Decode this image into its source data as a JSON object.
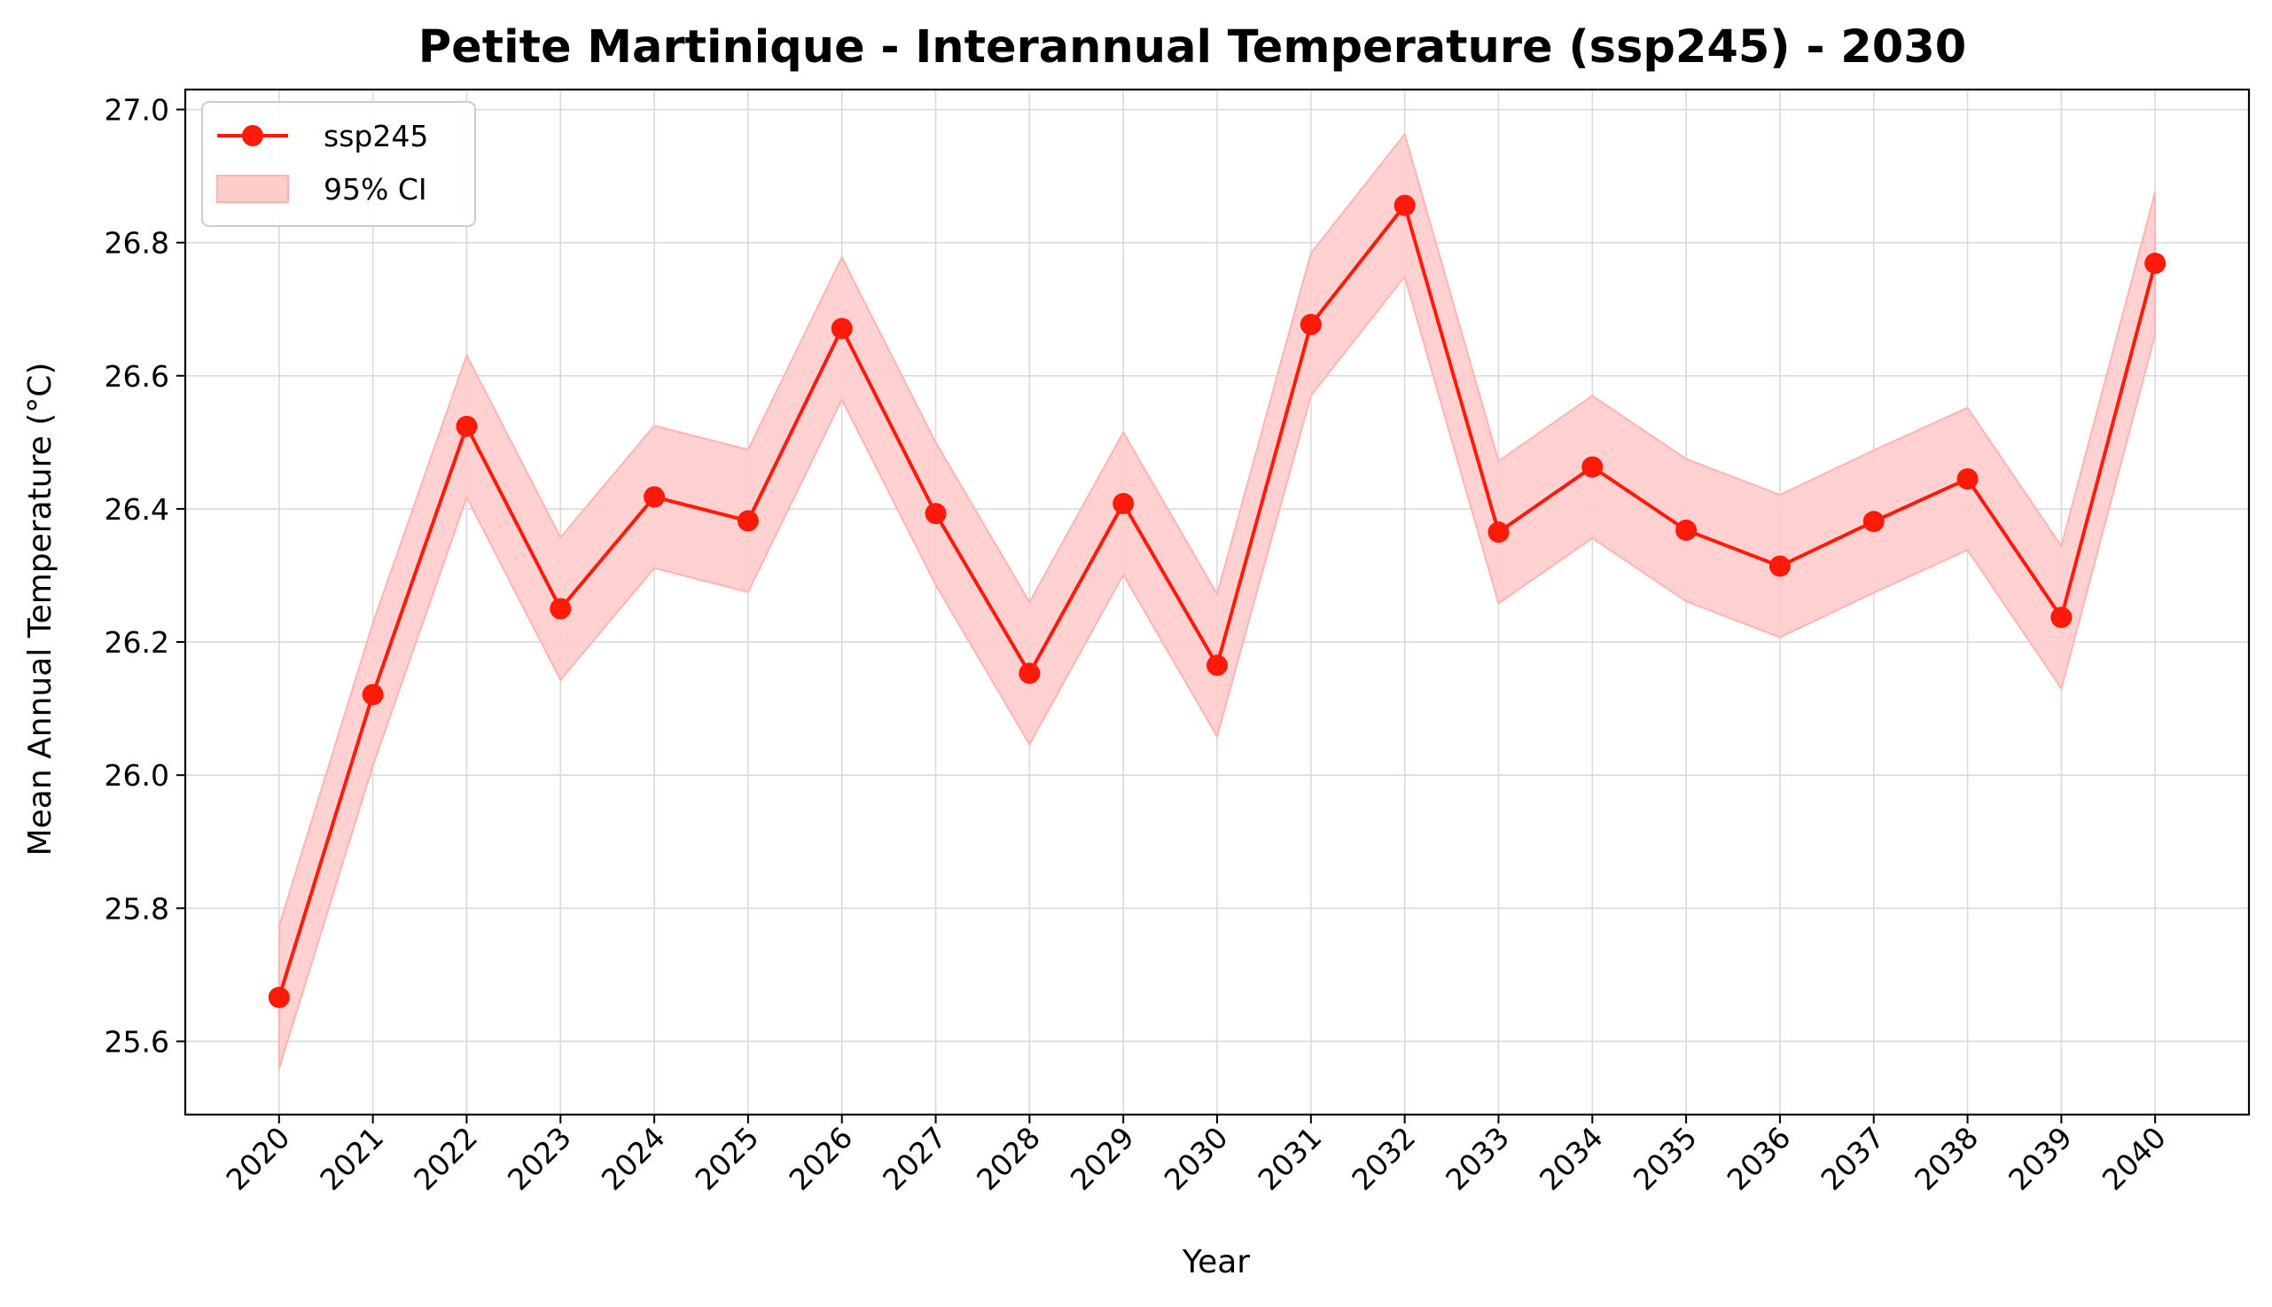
{
  "chart_data": {
    "type": "line",
    "title": "Petite Martinique - Interannual Temperature (ssp245) - 2030",
    "xlabel": "Year",
    "ylabel": "Mean Annual Temperature (°C)",
    "x": [
      2020,
      2021,
      2022,
      2023,
      2024,
      2025,
      2026,
      2027,
      2028,
      2029,
      2030,
      2031,
      2032,
      2033,
      2034,
      2035,
      2036,
      2037,
      2038,
      2039,
      2040
    ],
    "series": [
      {
        "name": "ssp245",
        "color": "#ff1a0a",
        "values": [
          25.666,
          26.121,
          26.524,
          26.25,
          26.418,
          26.382,
          26.671,
          26.393,
          26.153,
          26.408,
          26.165,
          26.677,
          26.856,
          26.365,
          26.463,
          26.368,
          26.314,
          26.381,
          26.445,
          26.237,
          26.769
        ]
      }
    ],
    "ci": {
      "name": "95% CI",
      "color": "#ffcccc",
      "lower": [
        25.559,
        26.014,
        26.417,
        26.143,
        26.311,
        26.275,
        26.564,
        26.286,
        26.046,
        26.301,
        26.058,
        26.57,
        26.749,
        26.258,
        26.356,
        26.261,
        26.207,
        26.274,
        26.338,
        26.13,
        26.662
      ],
      "upper": [
        25.773,
        26.228,
        26.631,
        26.357,
        26.525,
        26.489,
        26.778,
        26.5,
        26.26,
        26.515,
        26.272,
        26.784,
        26.963,
        26.472,
        26.57,
        26.475,
        26.421,
        26.488,
        26.552,
        26.344,
        26.876
      ]
    },
    "xticks": [
      "2020",
      "2021",
      "2022",
      "2023",
      "2024",
      "2025",
      "2026",
      "2027",
      "2028",
      "2029",
      "2030",
      "2031",
      "2032",
      "2033",
      "2034",
      "2035",
      "2036",
      "2037",
      "2038",
      "2039",
      "2040"
    ],
    "yticks": [
      "25.6",
      "25.8",
      "26.0",
      "26.2",
      "26.4",
      "26.6",
      "26.8",
      "27.0"
    ],
    "ylim": [
      25.49,
      27.03
    ],
    "xlim": [
      2019,
      2041
    ],
    "grid": true,
    "legend_position": "top-left"
  }
}
